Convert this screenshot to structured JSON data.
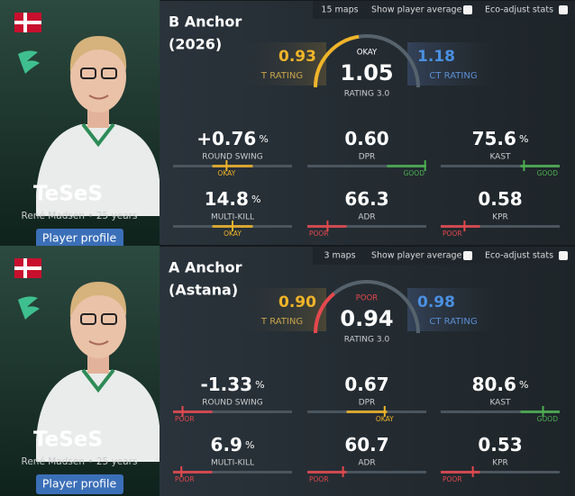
{
  "panels": [
    {
      "player": {
        "name": "TeSeS",
        "details": "René Madsen • 25 years",
        "button": "Player profile"
      },
      "title": [
        "B Anchor",
        "(2026)"
      ],
      "toolbar": {
        "maps": "15 maps",
        "show_average": "Show player average",
        "eco_adjust": "Eco-adjust stats"
      },
      "rating": {
        "t_value": "0.93",
        "t_label": "T RATING",
        "ct_value": "1.18",
        "ct_label": "CT RATING",
        "value": "1.05",
        "label": "RATING 3.0",
        "level": "OKAY"
      },
      "stats": [
        {
          "value": "+0.76",
          "unit": "%",
          "label": "ROUND SWING",
          "level": "OKAY"
        },
        {
          "value": "0.60",
          "label": "DPR",
          "level": "GOOD"
        },
        {
          "value": "75.6",
          "unit": "%",
          "label": "KAST",
          "level": "GOOD"
        },
        {
          "value": "14.8",
          "unit": "%",
          "label": "MULTI-KILL",
          "level": "OKAY"
        },
        {
          "value": "66.3",
          "label": "ADR",
          "level": "POOR"
        },
        {
          "value": "0.58",
          "label": "KPR",
          "level": "POOR"
        }
      ]
    },
    {
      "player": {
        "name": "TeSeS",
        "details": "René Madsen • 25 years",
        "button": "Player profile"
      },
      "title": [
        "A Anchor",
        "(Astana)"
      ],
      "toolbar": {
        "maps": "3 maps",
        "show_average": "Show player average",
        "eco_adjust": "Eco-adjust stats"
      },
      "rating": {
        "t_value": "0.90",
        "t_label": "T RATING",
        "ct_value": "0.98",
        "ct_label": "CT RATING",
        "value": "0.94",
        "label": "RATING 3.0",
        "level": "POOR"
      },
      "stats": [
        {
          "value": "-1.33",
          "unit": "%",
          "label": "ROUND SWING",
          "level": "POOR"
        },
        {
          "value": "0.67",
          "label": "DPR",
          "level": "OKAY"
        },
        {
          "value": "80.6",
          "unit": "%",
          "label": "KAST",
          "level": "GOOD"
        },
        {
          "value": "6.9",
          "unit": "%",
          "label": "MULTI-KILL",
          "level": "POOR"
        },
        {
          "value": "60.7",
          "label": "ADR",
          "level": "POOR"
        },
        {
          "value": "0.53",
          "label": "KPR",
          "level": "POOR"
        }
      ]
    }
  ]
}
